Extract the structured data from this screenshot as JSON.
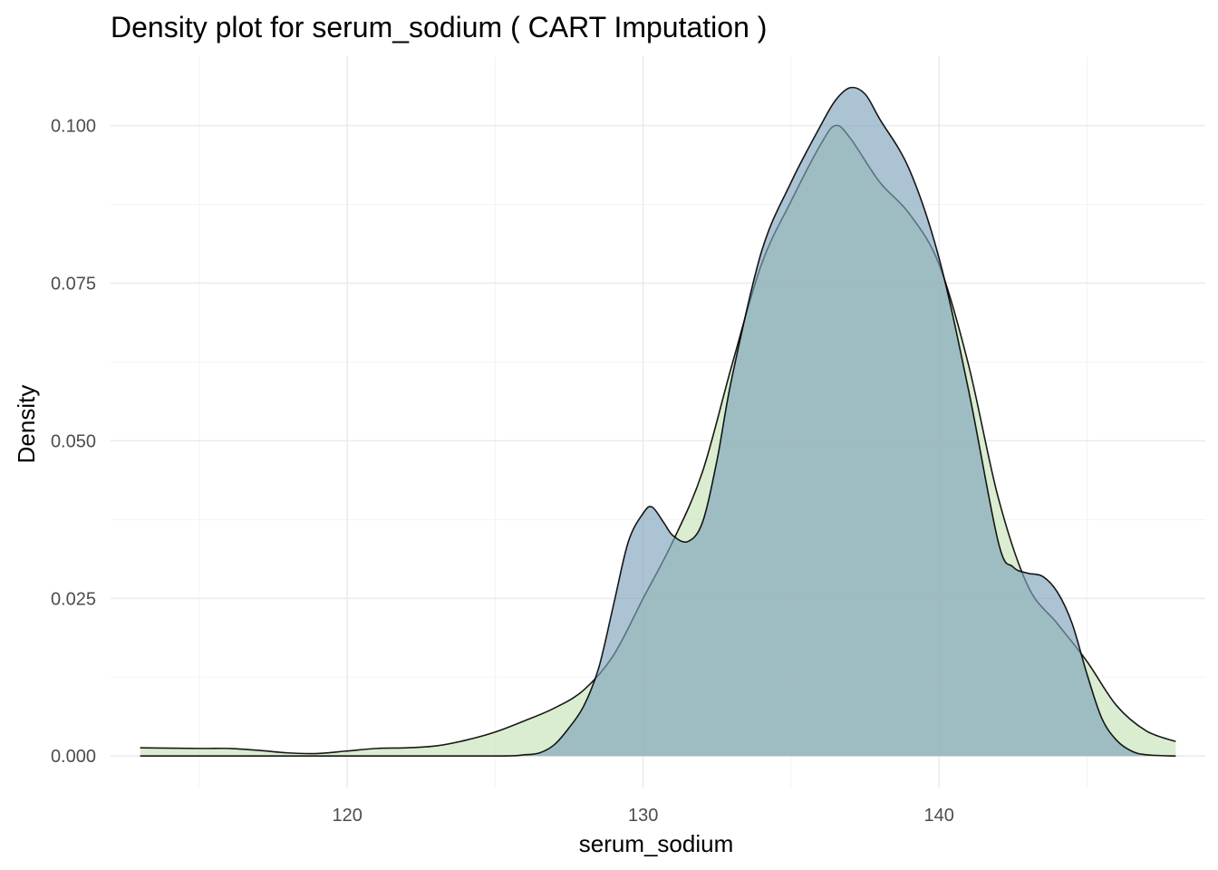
{
  "chart_data": {
    "type": "area",
    "title": "Density plot for serum_sodium ( CART Imputation )",
    "xlabel": "serum_sodium",
    "ylabel": "Density",
    "xlim": [
      112,
      149
    ],
    "ylim": [
      -0.005,
      0.111
    ],
    "x_ticks": [
      120,
      130,
      140
    ],
    "x_tick_labels": [
      "120",
      "130",
      "140"
    ],
    "x_minor": [
      115,
      125,
      135,
      145
    ],
    "y_ticks": [
      0.0,
      0.025,
      0.05,
      0.075,
      0.1
    ],
    "y_tick_labels": [
      "0.000",
      "0.025",
      "0.050",
      "0.075",
      "0.100"
    ],
    "y_minor": [
      0.0125,
      0.0375,
      0.0625,
      0.0875
    ],
    "grid": true,
    "legend": "none",
    "series": [
      {
        "color": "#c7e3b7",
        "x": [
          113,
          115,
          116,
          117,
          118,
          119,
          120,
          121,
          122,
          123,
          124,
          125,
          126,
          127,
          128,
          129,
          130,
          131,
          132,
          133,
          134,
          135,
          136,
          136.5,
          137,
          138,
          139,
          140,
          141,
          142,
          143,
          144,
          145,
          146,
          147,
          148
        ],
        "values": [
          0.0013,
          0.0012,
          0.0012,
          0.0009,
          0.0005,
          0.0004,
          0.0008,
          0.0012,
          0.0013,
          0.0016,
          0.0025,
          0.0038,
          0.0056,
          0.0076,
          0.0105,
          0.016,
          0.025,
          0.034,
          0.045,
          0.062,
          0.078,
          0.088,
          0.097,
          0.1,
          0.098,
          0.091,
          0.086,
          0.078,
          0.062,
          0.041,
          0.027,
          0.021,
          0.015,
          0.008,
          0.004,
          0.0023
        ]
      },
      {
        "color": "#7ea3bb",
        "x": [
          113,
          120,
          125,
          126,
          126.5,
          127,
          127.5,
          128,
          128.5,
          129,
          129.5,
          130,
          130.3,
          130.7,
          131,
          131.5,
          132,
          132.5,
          133,
          134,
          135,
          136,
          136.5,
          137,
          137.5,
          138,
          139,
          140,
          141,
          142,
          142.5,
          143,
          143.5,
          144,
          144.5,
          145,
          145.5,
          146,
          146.5,
          147,
          148
        ],
        "values": [
          0.0,
          0.0,
          0.0,
          0.0002,
          0.0005,
          0.0018,
          0.0045,
          0.008,
          0.014,
          0.024,
          0.034,
          0.0385,
          0.0395,
          0.037,
          0.035,
          0.034,
          0.037,
          0.047,
          0.06,
          0.08,
          0.091,
          0.1,
          0.104,
          0.106,
          0.105,
          0.101,
          0.093,
          0.079,
          0.058,
          0.034,
          0.03,
          0.029,
          0.0285,
          0.026,
          0.021,
          0.013,
          0.006,
          0.0025,
          0.0008,
          0.0002,
          0.0
        ]
      }
    ]
  }
}
